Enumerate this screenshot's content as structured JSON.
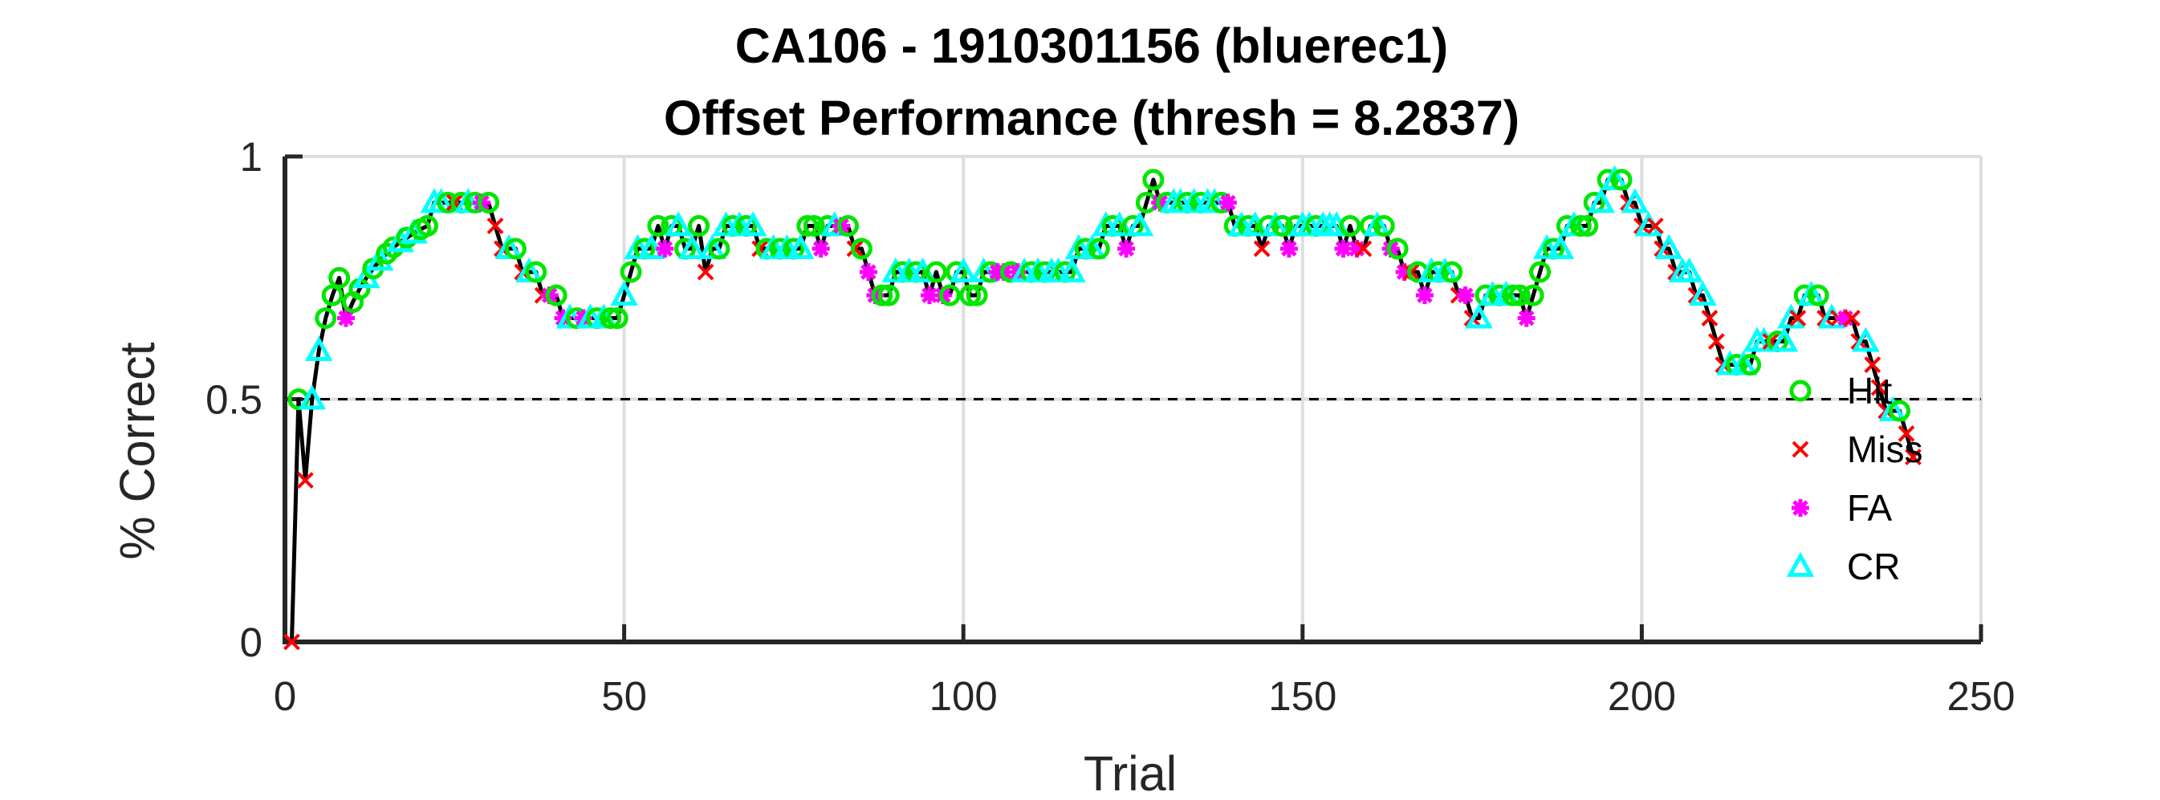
{
  "chart_data": {
    "type": "line",
    "title": [
      "CA106 - 1910301156 (bluerec1)",
      "Offset Performance (thresh = 8.2837)"
    ],
    "xlabel": "Trial",
    "ylabel": "% Correct",
    "xlim": [
      0,
      250
    ],
    "ylim": [
      0,
      1
    ],
    "xticks": [
      0,
      50,
      100,
      150,
      200,
      250
    ],
    "yticks": [
      0,
      0.5,
      1
    ],
    "xtick_labels": [
      "0",
      "50",
      "100",
      "150",
      "200",
      "250"
    ],
    "ytick_labels": [
      "0",
      "0.5",
      "1"
    ],
    "grid": true,
    "reference_line": {
      "y": 0.5,
      "style": "dashed",
      "color": "#000000"
    },
    "legend": {
      "position": "right",
      "entries": [
        "Hit",
        "Miss",
        "FA",
        "CR"
      ]
    },
    "line_color": "#000000",
    "series": [
      {
        "name": "Hit",
        "marker": "circle",
        "color": "#00e600"
      },
      {
        "name": "Miss",
        "marker": "x",
        "color": "#ff0000"
      },
      {
        "name": "FA",
        "marker": "asterisk",
        "color": "#ff00ff"
      },
      {
        "name": "CR",
        "marker": "triangle",
        "color": "#00ffff"
      }
    ],
    "points": [
      [
        1,
        0.0,
        "Miss"
      ],
      [
        2,
        0.5,
        "Hit"
      ],
      [
        3,
        0.333,
        "Miss"
      ],
      [
        4,
        0.5,
        "CR"
      ],
      [
        5,
        0.6,
        "CR"
      ],
      [
        6,
        0.667,
        "Hit"
      ],
      [
        7,
        0.714,
        "Hit"
      ],
      [
        8,
        0.75,
        "Hit"
      ],
      [
        9,
        0.667,
        "FA"
      ],
      [
        10,
        0.7,
        "Hit"
      ],
      [
        11,
        0.727,
        "Hit"
      ],
      [
        12,
        0.75,
        "CR"
      ],
      [
        13,
        0.769,
        "Hit"
      ],
      [
        14,
        0.786,
        "CR"
      ],
      [
        15,
        0.8,
        "Hit"
      ],
      [
        16,
        0.813,
        "Hit"
      ],
      [
        17,
        0.824,
        "CR"
      ],
      [
        18,
        0.833,
        "Hit"
      ],
      [
        19,
        0.842,
        "CR"
      ],
      [
        20,
        0.85,
        "Hit"
      ],
      [
        21,
        0.857,
        "Hit"
      ],
      [
        22,
        0.905,
        "CR"
      ],
      [
        23,
        0.905,
        "CR"
      ],
      [
        24,
        0.905,
        "Hit"
      ],
      [
        25,
        0.905,
        "Miss"
      ],
      [
        26,
        0.905,
        "Hit"
      ],
      [
        27,
        0.905,
        "CR"
      ],
      [
        28,
        0.905,
        "Hit"
      ],
      [
        29,
        0.905,
        "FA"
      ],
      [
        30,
        0.905,
        "Hit"
      ],
      [
        31,
        0.857,
        "Miss"
      ],
      [
        32,
        0.81,
        "Miss"
      ],
      [
        33,
        0.81,
        "CR"
      ],
      [
        34,
        0.81,
        "Hit"
      ],
      [
        35,
        0.762,
        "Miss"
      ],
      [
        36,
        0.762,
        "CR"
      ],
      [
        37,
        0.762,
        "Hit"
      ],
      [
        38,
        0.714,
        "Miss"
      ],
      [
        39,
        0.714,
        "FA"
      ],
      [
        40,
        0.714,
        "Hit"
      ],
      [
        41,
        0.667,
        "FA"
      ],
      [
        42,
        0.667,
        "CR"
      ],
      [
        43,
        0.667,
        "Hit"
      ],
      [
        44,
        0.667,
        "FA"
      ],
      [
        45,
        0.667,
        "CR"
      ],
      [
        46,
        0.667,
        "Hit"
      ],
      [
        47,
        0.667,
        "CR"
      ],
      [
        48,
        0.667,
        "Hit"
      ],
      [
        49,
        0.667,
        "Hit"
      ],
      [
        50,
        0.714,
        "CR"
      ],
      [
        51,
        0.762,
        "Hit"
      ],
      [
        52,
        0.81,
        "CR"
      ],
      [
        53,
        0.81,
        "Hit"
      ],
      [
        54,
        0.81,
        "CR"
      ],
      [
        55,
        0.857,
        "Hit"
      ],
      [
        56,
        0.81,
        "FA"
      ],
      [
        57,
        0.857,
        "Hit"
      ],
      [
        58,
        0.857,
        "CR"
      ],
      [
        59,
        0.81,
        "Hit"
      ],
      [
        60,
        0.81,
        "CR"
      ],
      [
        61,
        0.857,
        "Hit"
      ],
      [
        62,
        0.762,
        "Miss"
      ],
      [
        63,
        0.81,
        "CR"
      ],
      [
        64,
        0.81,
        "Hit"
      ],
      [
        65,
        0.857,
        "CR"
      ],
      [
        66,
        0.857,
        "Hit"
      ],
      [
        67,
        0.857,
        "CR"
      ],
      [
        68,
        0.857,
        "Hit"
      ],
      [
        69,
        0.857,
        "CR"
      ],
      [
        70,
        0.81,
        "Miss"
      ],
      [
        71,
        0.81,
        "Hit"
      ],
      [
        72,
        0.81,
        "CR"
      ],
      [
        73,
        0.81,
        "Hit"
      ],
      [
        74,
        0.81,
        "CR"
      ],
      [
        75,
        0.81,
        "Hit"
      ],
      [
        76,
        0.81,
        "CR"
      ],
      [
        77,
        0.857,
        "Hit"
      ],
      [
        78,
        0.857,
        "Hit"
      ],
      [
        79,
        0.81,
        "FA"
      ],
      [
        80,
        0.857,
        "Hit"
      ],
      [
        81,
        0.857,
        "CR"
      ],
      [
        82,
        0.857,
        "FA"
      ],
      [
        83,
        0.857,
        "Hit"
      ],
      [
        84,
        0.81,
        "Miss"
      ],
      [
        85,
        0.81,
        "Hit"
      ],
      [
        86,
        0.762,
        "FA"
      ],
      [
        87,
        0.714,
        "FA"
      ],
      [
        88,
        0.714,
        "Hit"
      ],
      [
        89,
        0.714,
        "Hit"
      ],
      [
        90,
        0.762,
        "CR"
      ],
      [
        91,
        0.762,
        "Hit"
      ],
      [
        92,
        0.762,
        "CR"
      ],
      [
        93,
        0.762,
        "Hit"
      ],
      [
        94,
        0.762,
        "CR"
      ],
      [
        95,
        0.714,
        "FA"
      ],
      [
        96,
        0.762,
        "Hit"
      ],
      [
        97,
        0.714,
        "FA"
      ],
      [
        98,
        0.714,
        "Hit"
      ],
      [
        99,
        0.762,
        "Hit"
      ],
      [
        100,
        0.762,
        "CR"
      ],
      [
        101,
        0.714,
        "Hit"
      ],
      [
        102,
        0.714,
        "Hit"
      ],
      [
        103,
        0.762,
        "CR"
      ],
      [
        104,
        0.762,
        "Hit"
      ],
      [
        105,
        0.762,
        "FA"
      ],
      [
        106,
        0.762,
        "FA"
      ],
      [
        107,
        0.762,
        "Hit"
      ],
      [
        108,
        0.762,
        "FA"
      ],
      [
        109,
        0.762,
        "CR"
      ],
      [
        110,
        0.762,
        "Hit"
      ],
      [
        111,
        0.762,
        "CR"
      ],
      [
        112,
        0.762,
        "Hit"
      ],
      [
        113,
        0.762,
        "CR"
      ],
      [
        114,
        0.762,
        "CR"
      ],
      [
        115,
        0.762,
        "Hit"
      ],
      [
        116,
        0.762,
        "CR"
      ],
      [
        117,
        0.81,
        "CR"
      ],
      [
        118,
        0.81,
        "Hit"
      ],
      [
        119,
        0.81,
        "CR"
      ],
      [
        120,
        0.81,
        "Hit"
      ],
      [
        121,
        0.857,
        "CR"
      ],
      [
        122,
        0.857,
        "Hit"
      ],
      [
        123,
        0.857,
        "CR"
      ],
      [
        124,
        0.81,
        "FA"
      ],
      [
        125,
        0.857,
        "Hit"
      ],
      [
        126,
        0.857,
        "CR"
      ],
      [
        127,
        0.905,
        "Hit"
      ],
      [
        128,
        0.952,
        "Hit"
      ],
      [
        129,
        0.905,
        "FA"
      ],
      [
        130,
        0.905,
        "Hit"
      ],
      [
        131,
        0.905,
        "CR"
      ],
      [
        132,
        0.905,
        "CR"
      ],
      [
        133,
        0.905,
        "Hit"
      ],
      [
        134,
        0.905,
        "CR"
      ],
      [
        135,
        0.905,
        "Hit"
      ],
      [
        136,
        0.905,
        "CR"
      ],
      [
        137,
        0.905,
        "CR"
      ],
      [
        138,
        0.905,
        "Hit"
      ],
      [
        139,
        0.905,
        "FA"
      ],
      [
        140,
        0.857,
        "Hit"
      ],
      [
        141,
        0.857,
        "CR"
      ],
      [
        142,
        0.857,
        "Hit"
      ],
      [
        143,
        0.857,
        "CR"
      ],
      [
        144,
        0.81,
        "Miss"
      ],
      [
        145,
        0.857,
        "Hit"
      ],
      [
        146,
        0.857,
        "CR"
      ],
      [
        147,
        0.857,
        "Hit"
      ],
      [
        148,
        0.81,
        "FA"
      ],
      [
        149,
        0.857,
        "Hit"
      ],
      [
        150,
        0.857,
        "CR"
      ],
      [
        151,
        0.857,
        "CR"
      ],
      [
        152,
        0.857,
        "Hit"
      ],
      [
        153,
        0.857,
        "CR"
      ],
      [
        154,
        0.857,
        "CR"
      ],
      [
        155,
        0.857,
        "CR"
      ],
      [
        156,
        0.81,
        "FA"
      ],
      [
        157,
        0.857,
        "Hit"
      ],
      [
        158,
        0.81,
        "FA"
      ],
      [
        159,
        0.81,
        "Miss"
      ],
      [
        160,
        0.857,
        "Hit"
      ],
      [
        161,
        0.857,
        "CR"
      ],
      [
        162,
        0.857,
        "Hit"
      ],
      [
        163,
        0.81,
        "FA"
      ],
      [
        164,
        0.81,
        "Hit"
      ],
      [
        165,
        0.762,
        "FA"
      ],
      [
        166,
        0.762,
        "Miss"
      ],
      [
        167,
        0.762,
        "Hit"
      ],
      [
        168,
        0.714,
        "FA"
      ],
      [
        169,
        0.762,
        "CR"
      ],
      [
        170,
        0.762,
        "Hit"
      ],
      [
        171,
        0.762,
        "CR"
      ],
      [
        172,
        0.762,
        "Hit"
      ],
      [
        173,
        0.714,
        "Miss"
      ],
      [
        174,
        0.714,
        "FA"
      ],
      [
        175,
        0.667,
        "Miss"
      ],
      [
        176,
        0.667,
        "CR"
      ],
      [
        177,
        0.714,
        "Hit"
      ],
      [
        178,
        0.714,
        "CR"
      ],
      [
        179,
        0.714,
        "Hit"
      ],
      [
        180,
        0.714,
        "CR"
      ],
      [
        181,
        0.714,
        "Hit"
      ],
      [
        182,
        0.714,
        "Hit"
      ],
      [
        183,
        0.667,
        "FA"
      ],
      [
        184,
        0.714,
        "Hit"
      ],
      [
        185,
        0.762,
        "Hit"
      ],
      [
        186,
        0.81,
        "CR"
      ],
      [
        187,
        0.81,
        "Hit"
      ],
      [
        188,
        0.81,
        "CR"
      ],
      [
        189,
        0.857,
        "Hit"
      ],
      [
        190,
        0.857,
        "CR"
      ],
      [
        191,
        0.857,
        "Hit"
      ],
      [
        192,
        0.857,
        "Hit"
      ],
      [
        193,
        0.905,
        "Hit"
      ],
      [
        194,
        0.905,
        "CR"
      ],
      [
        195,
        0.952,
        "Hit"
      ],
      [
        196,
        0.952,
        "CR"
      ],
      [
        197,
        0.952,
        "Hit"
      ],
      [
        198,
        0.905,
        "Miss"
      ],
      [
        199,
        0.905,
        "CR"
      ],
      [
        200,
        0.857,
        "Miss"
      ],
      [
        201,
        0.857,
        "CR"
      ],
      [
        202,
        0.857,
        "Miss"
      ],
      [
        203,
        0.81,
        "Miss"
      ],
      [
        204,
        0.81,
        "CR"
      ],
      [
        205,
        0.762,
        "Miss"
      ],
      [
        206,
        0.762,
        "CR"
      ],
      [
        207,
        0.762,
        "CR"
      ],
      [
        208,
        0.714,
        "Miss"
      ],
      [
        209,
        0.714,
        "CR"
      ],
      [
        210,
        0.667,
        "Miss"
      ],
      [
        211,
        0.619,
        "Miss"
      ],
      [
        212,
        0.571,
        "Miss"
      ],
      [
        213,
        0.571,
        "CR"
      ],
      [
        214,
        0.571,
        "Hit"
      ],
      [
        215,
        0.571,
        "CR"
      ],
      [
        216,
        0.571,
        "Hit"
      ],
      [
        217,
        0.619,
        "CR"
      ],
      [
        218,
        0.619,
        "CR"
      ],
      [
        219,
        0.619,
        "Miss"
      ],
      [
        220,
        0.619,
        "Hit"
      ],
      [
        221,
        0.619,
        "CR"
      ],
      [
        222,
        0.667,
        "CR"
      ],
      [
        223,
        0.667,
        "Miss"
      ],
      [
        224,
        0.714,
        "Hit"
      ],
      [
        225,
        0.714,
        "CR"
      ],
      [
        226,
        0.714,
        "Hit"
      ],
      [
        227,
        0.667,
        "Miss"
      ],
      [
        228,
        0.667,
        "CR"
      ],
      [
        229,
        0.667,
        "Miss"
      ],
      [
        230,
        0.667,
        "FA"
      ],
      [
        231,
        0.667,
        "Miss"
      ],
      [
        232,
        0.619,
        "Miss"
      ],
      [
        233,
        0.619,
        "CR"
      ],
      [
        234,
        0.571,
        "Miss"
      ],
      [
        235,
        0.524,
        "Miss"
      ],
      [
        236,
        0.476,
        "Miss"
      ],
      [
        237,
        0.476,
        "CR"
      ],
      [
        238,
        0.476,
        "Hit"
      ],
      [
        239,
        0.429,
        "Miss"
      ],
      [
        240,
        0.381,
        "Miss"
      ]
    ]
  }
}
